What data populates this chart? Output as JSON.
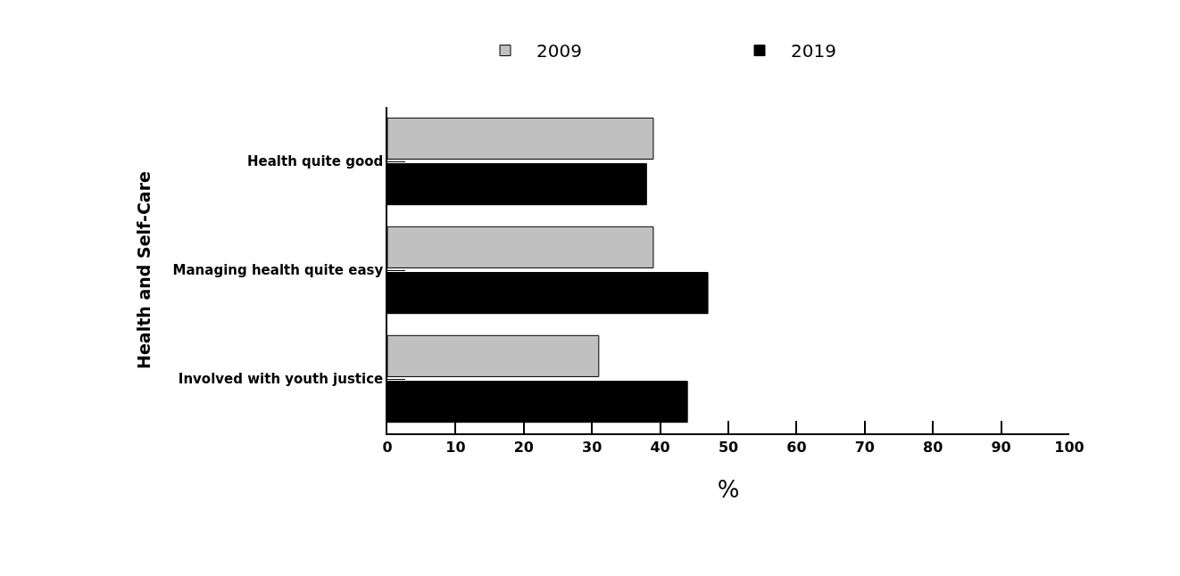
{
  "chart_data": {
    "type": "bar",
    "orientation": "horizontal",
    "ylabel": "Health and Self-Care",
    "xlabel": "%",
    "categories": [
      "Health quite good",
      "Managing health quite easy",
      "Involved with youth justice"
    ],
    "series": [
      {
        "name": "2009",
        "color": "#c0c0c0",
        "values": [
          39,
          39,
          31
        ]
      },
      {
        "name": "2019",
        "color": "#000000",
        "values": [
          38,
          47,
          44
        ]
      }
    ],
    "xlim": [
      0,
      100
    ],
    "xticks": [
      0,
      10,
      20,
      30,
      40,
      50,
      60,
      70,
      80,
      90,
      100
    ],
    "grid": false,
    "legend": "top"
  }
}
